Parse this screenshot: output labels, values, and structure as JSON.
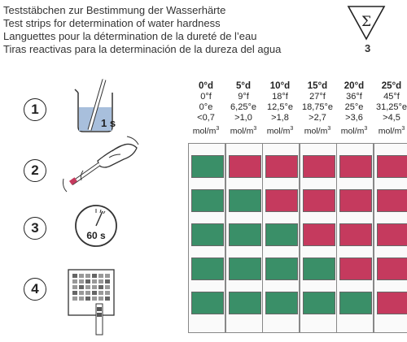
{
  "titles": [
    "Teststäbchen zur Bestimmung der Wasserhärte",
    "Test strips for determination of water hardness",
    "Languettes pour la détermination de la dureté de l’eau",
    "Tiras reactivas para la determinación de la dureza del agua"
  ],
  "sigma_symbol": "Σ",
  "sigma_count": "3",
  "steps": [
    {
      "number": "1",
      "label": "1 s",
      "icon": "beaker-with-strip-icon"
    },
    {
      "number": "2",
      "icon": "hand-shaking-strip-icon"
    },
    {
      "number": "3",
      "label": "60 s",
      "icon": "stopwatch-icon"
    },
    {
      "number": "4",
      "icon": "color-chart-compare-icon"
    }
  ],
  "columns": [
    {
      "dh": "0°d",
      "fh": "0°f",
      "eh": "0°e",
      "range": "<0,7",
      "unit": "mol/m",
      "pads": [
        "g",
        "g",
        "g",
        "g",
        "g"
      ]
    },
    {
      "dh": "5°d",
      "fh": "9°f",
      "eh": "6,25°e",
      "range": ">1,0",
      "unit": "mol/m",
      "pads": [
        "r",
        "g",
        "g",
        "g",
        "g"
      ]
    },
    {
      "dh": "10°d",
      "fh": "18°f",
      "eh": "12,5°e",
      "range": ">1,8",
      "unit": "mol/m",
      "pads": [
        "r",
        "r",
        "g",
        "g",
        "g"
      ]
    },
    {
      "dh": "15°d",
      "fh": "27°f",
      "eh": "18,75°e",
      "range": ">2,7",
      "unit": "mol/m",
      "pads": [
        "r",
        "r",
        "r",
        "g",
        "g"
      ]
    },
    {
      "dh": "20°d",
      "fh": "36°f",
      "eh": "25°e",
      "range": ">3,6",
      "unit": "mol/m",
      "pads": [
        "r",
        "r",
        "r",
        "r",
        "g"
      ]
    },
    {
      "dh": "25°d",
      "fh": "45°f",
      "eh": "31,25°e",
      "range": ">4,5",
      "unit": "mol/m",
      "pads": [
        "r",
        "r",
        "r",
        "r",
        "r"
      ]
    }
  ],
  "unit_superscript": "3",
  "colors": {
    "green": "#3a8f68",
    "red": "#c53a5e",
    "pad_border": "#666666"
  }
}
